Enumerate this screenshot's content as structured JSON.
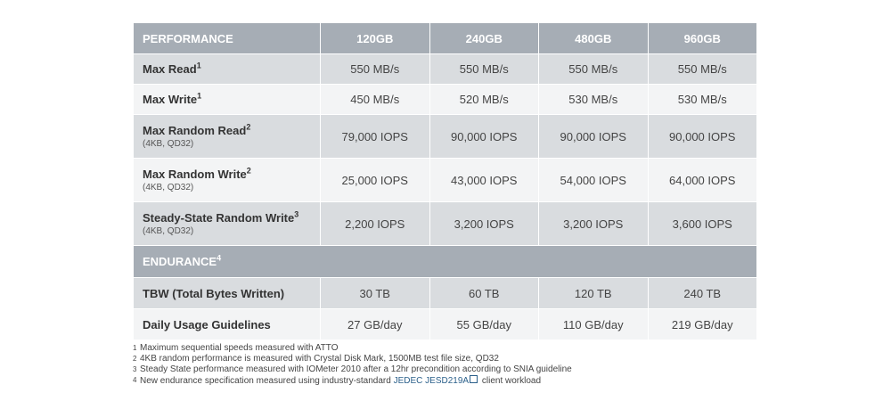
{
  "performance_header": {
    "title": "PERFORMANCE",
    "capacities": [
      "120GB",
      "240GB",
      "480GB",
      "960GB"
    ]
  },
  "performance_rows": [
    {
      "label": "Max Read",
      "note": "1",
      "values": [
        "550 MB/s",
        "550 MB/s",
        "550 MB/s",
        "550 MB/s"
      ]
    },
    {
      "label": "Max Write",
      "note": "1",
      "values": [
        "450 MB/s",
        "520 MB/s",
        "530 MB/s",
        "530 MB/s"
      ]
    },
    {
      "label": "Max Random Read",
      "note": "2",
      "detail": "(4KB, QD32)",
      "values": [
        "79,000 IOPS",
        "90,000 IOPS",
        "90,000 IOPS",
        "90,000 IOPS"
      ]
    },
    {
      "label": "Max Random Write",
      "note": "2",
      "detail": "(4KB, QD32)",
      "values": [
        "25,000 IOPS",
        "43,000 IOPS",
        "54,000 IOPS",
        "64,000 IOPS"
      ]
    },
    {
      "label": "Steady-State Random Write",
      "note": "3",
      "detail": "(4KB, QD32)",
      "values": [
        "2,200 IOPS",
        "3,200 IOPS",
        "3,200 IOPS",
        "3,600 IOPS"
      ]
    }
  ],
  "endurance_header": {
    "title": "ENDURANCE",
    "note": "4"
  },
  "endurance_rows": [
    {
      "label": "TBW (Total Bytes Written)",
      "values": [
        "30 TB",
        "60 TB",
        "120 TB",
        "240 TB"
      ]
    },
    {
      "label": "Daily Usage Guidelines",
      "values": [
        "27 GB/day",
        "55 GB/day",
        "110 GB/day",
        "219 GB/day"
      ]
    }
  ],
  "footnotes": [
    {
      "num": "1",
      "text": "Maximum sequential speeds measured with ATTO"
    },
    {
      "num": "2",
      "text": "4KB random performance is measured with Crystal Disk Mark, 1500MB test file size, QD32"
    },
    {
      "num": "3",
      "text": "Steady State performance measured with IOMeter 2010 after a 12hr precondition according to SNIA guideline"
    },
    {
      "num": "4",
      "text_before": "New endurance specification measured using industry-standard ",
      "link": "JEDEC JESD219A",
      "icon": "external-link-icon",
      "text_after": " client workload"
    }
  ],
  "colors": {
    "header_bg": "#a6adb5",
    "row_shaded": "#d9dcdf",
    "row_plain": "#f3f4f5",
    "link": "#2a5f8a"
  }
}
